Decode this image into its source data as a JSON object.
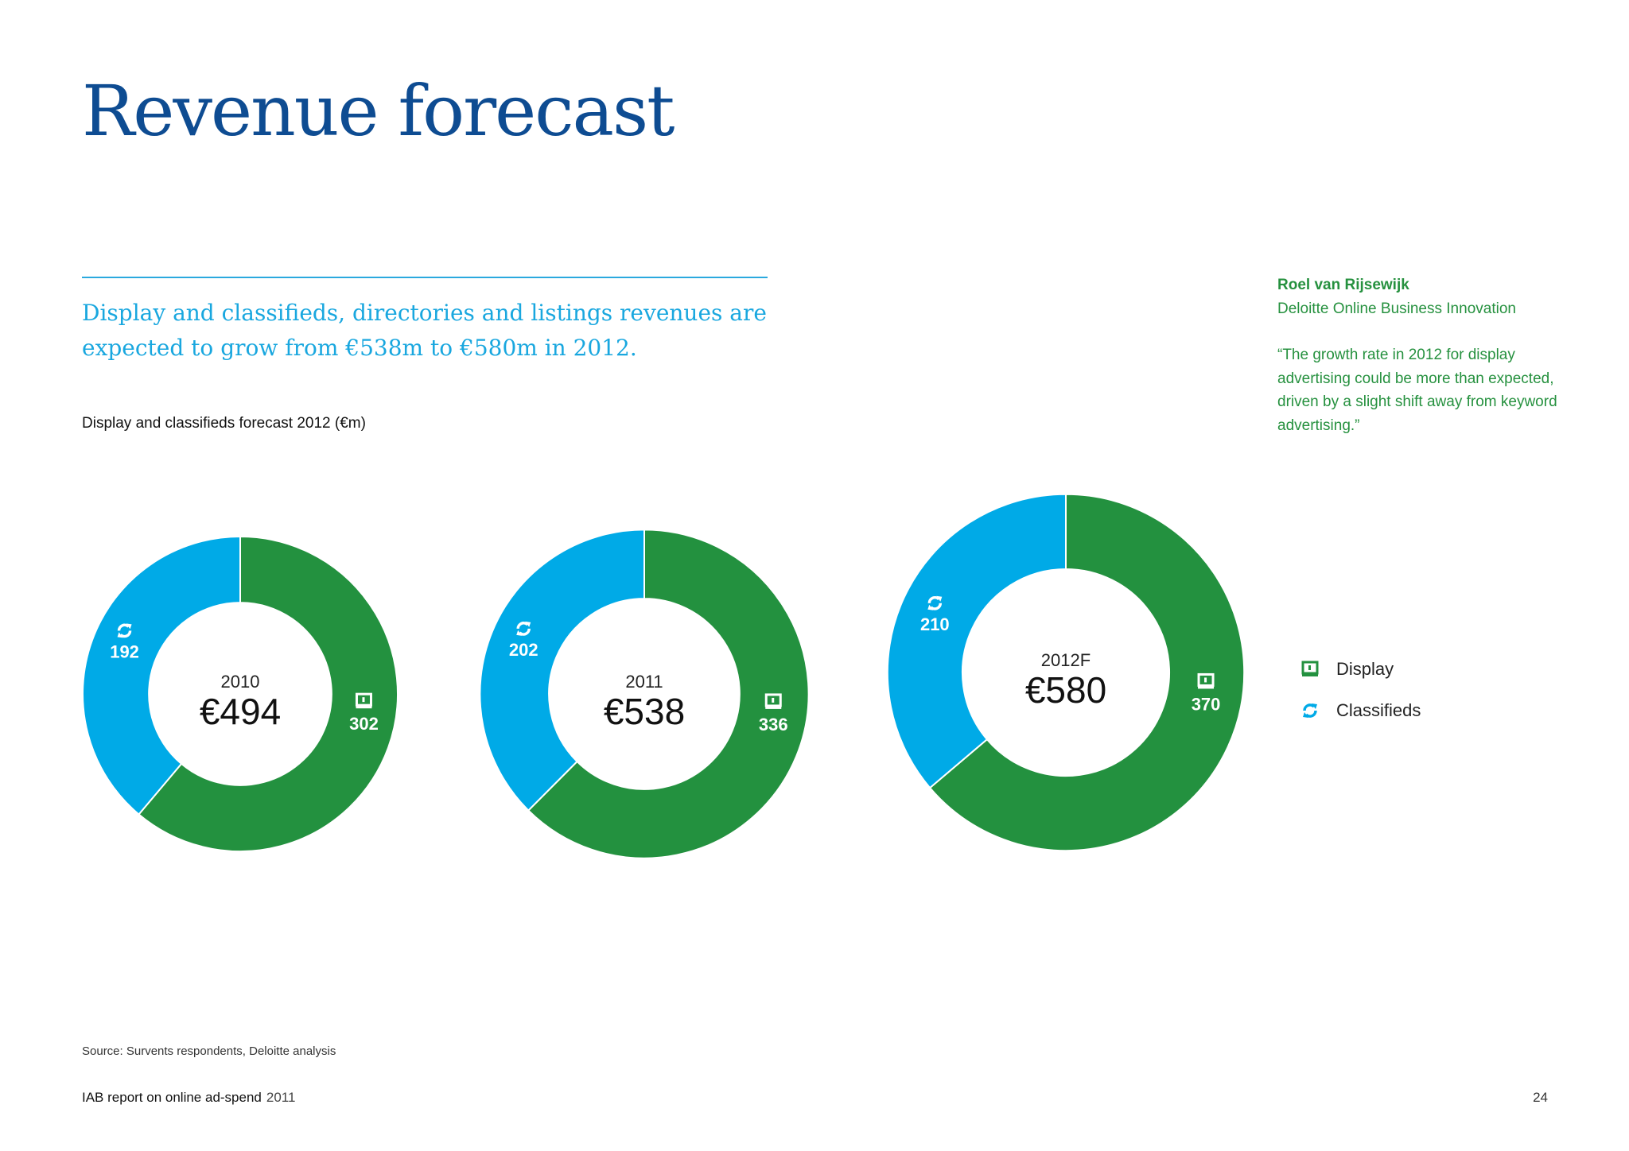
{
  "page": {
    "title": "Revenue forecast",
    "lede": "Display and classifieds, directories and listings revenues are expected to grow from €538m to €580m in 2012.",
    "source": "Source: Survents respondents, Deloitte analysis",
    "footer_title": "IAB report on online ad-spend",
    "footer_year": "2011",
    "page_number": "24"
  },
  "quote": {
    "name": "Roel van Rijsewijk",
    "organization": "Deloitte Online Business Innovation",
    "text": "“The growth rate in 2012 for display advertising could be more than expected, driven by a slight shift away from keyword advertising.”"
  },
  "colors": {
    "display": "#23913f",
    "classifieds": "#00aae7",
    "title": "#0e4c92",
    "accent": "#19a7df"
  },
  "legend": {
    "display": {
      "label": "Display",
      "icon": "monitor-icon"
    },
    "classifieds": {
      "label": "Classifieds",
      "icon": "refresh-icon"
    }
  },
  "chart_data": {
    "type": "pie",
    "title": "Display and classifieds forecast 2012 (€m)",
    "series_names": [
      "Display",
      "Classifieds"
    ],
    "charts": [
      {
        "year": "2010",
        "total": "€494",
        "display": 302,
        "classifieds": 192
      },
      {
        "year": "2011",
        "total": "€538",
        "display": 336,
        "classifieds": 202
      },
      {
        "year": "2012F",
        "total": "€580",
        "display": 370,
        "classifieds": 210
      }
    ]
  }
}
